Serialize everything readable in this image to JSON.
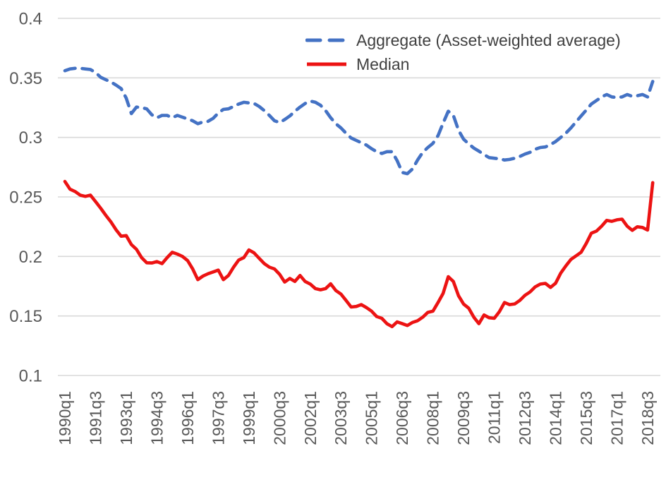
{
  "colors": {
    "aggregate_blue": "#4472c4",
    "median_red": "#ec1313",
    "gridline": "#d9d9d9",
    "axis_text": "#595959",
    "legend_text": "#404040",
    "background": "#ffffff"
  },
  "chart_data": {
    "type": "line",
    "title": "",
    "xlabel": "",
    "ylabel": "",
    "grid": "horizontal",
    "legend_position": "top-center-inside",
    "y_axis": {
      "ylim": [
        0.1,
        0.4
      ],
      "ticks": [
        {
          "label": "0.4",
          "value": 0.4
        },
        {
          "label": "0.35",
          "value": 0.35
        },
        {
          "label": "0.3",
          "value": 0.3
        },
        {
          "label": "0.25",
          "value": 0.25
        },
        {
          "label": "0.2",
          "value": 0.2
        },
        {
          "label": "0.15",
          "value": 0.15
        },
        {
          "label": "0.1",
          "value": 0.1
        }
      ]
    },
    "x_axis": {
      "start_quarter": "1990q1",
      "end_quarter": "2018q4",
      "label_every_quarters": 6,
      "labels": [
        "1990q1",
        "1991q3",
        "1993q1",
        "1994q3",
        "1996q1",
        "1997q3",
        "1999q1",
        "2000q3",
        "2002q1",
        "2003q3",
        "2005q1",
        "2006q3",
        "2008q1",
        "2009q3",
        "2011q1",
        "2012q3",
        "2014q1",
        "2015q3",
        "2017q1",
        "2018q3"
      ]
    },
    "series": [
      {
        "name": "Aggregate (Asset-weighted average)",
        "data_name": "aggregate-series-line",
        "color": "#4472c4",
        "style": "dashed",
        "values": [
          0.356,
          0.3575,
          0.358,
          0.358,
          0.3575,
          0.357,
          0.3545,
          0.3505,
          0.3485,
          0.3465,
          0.344,
          0.341,
          0.333,
          0.32,
          0.3255,
          0.325,
          0.324,
          0.319,
          0.3165,
          0.3185,
          0.3185,
          0.3165,
          0.3185,
          0.317,
          0.3155,
          0.314,
          0.3115,
          0.313,
          0.3135,
          0.316,
          0.3205,
          0.3235,
          0.324,
          0.326,
          0.328,
          0.3295,
          0.329,
          0.3285,
          0.326,
          0.3225,
          0.3185,
          0.314,
          0.3125,
          0.315,
          0.318,
          0.322,
          0.3255,
          0.3285,
          0.3305,
          0.3295,
          0.327,
          0.3225,
          0.3165,
          0.3115,
          0.308,
          0.3035,
          0.2995,
          0.2975,
          0.2955,
          0.2935,
          0.2905,
          0.288,
          0.2865,
          0.288,
          0.288,
          0.2805,
          0.2705,
          0.2695,
          0.2735,
          0.281,
          0.2875,
          0.2915,
          0.295,
          0.3015,
          0.312,
          0.322,
          0.3185,
          0.306,
          0.2985,
          0.2945,
          0.291,
          0.2885,
          0.2855,
          0.283,
          0.2825,
          0.282,
          0.281,
          0.2815,
          0.2825,
          0.284,
          0.286,
          0.2875,
          0.29,
          0.2915,
          0.292,
          0.294,
          0.2965,
          0.3,
          0.3035,
          0.308,
          0.313,
          0.318,
          0.323,
          0.328,
          0.331,
          0.334,
          0.336,
          0.334,
          0.3335,
          0.334,
          0.336,
          0.3345,
          0.335,
          0.336,
          0.334,
          0.347
        ]
      },
      {
        "name": "Median",
        "data_name": "median-series-line",
        "color": "#ec1313",
        "style": "solid",
        "values": [
          0.263,
          0.2565,
          0.2545,
          0.2515,
          0.2505,
          0.2515,
          0.246,
          0.2405,
          0.2345,
          0.229,
          0.2225,
          0.217,
          0.2175,
          0.21,
          0.206,
          0.199,
          0.1947,
          0.1945,
          0.1957,
          0.194,
          0.199,
          0.2035,
          0.202,
          0.2,
          0.1965,
          0.1895,
          0.1805,
          0.1835,
          0.1855,
          0.187,
          0.1885,
          0.1805,
          0.184,
          0.191,
          0.197,
          0.199,
          0.2055,
          0.203,
          0.1985,
          0.194,
          0.191,
          0.1895,
          0.185,
          0.1785,
          0.1815,
          0.179,
          0.184,
          0.179,
          0.1768,
          0.173,
          0.172,
          0.173,
          0.177,
          0.1714,
          0.1684,
          0.163,
          0.1575,
          0.158,
          0.1595,
          0.157,
          0.154,
          0.1495,
          0.148,
          0.1435,
          0.141,
          0.145,
          0.1435,
          0.142,
          0.1446,
          0.146,
          0.149,
          0.153,
          0.154,
          0.1613,
          0.169,
          0.183,
          0.179,
          0.167,
          0.16,
          0.1565,
          0.149,
          0.1435,
          0.1508,
          0.1485,
          0.148,
          0.1536,
          0.1613,
          0.1595,
          0.1601,
          0.1631,
          0.1673,
          0.1702,
          0.1744,
          0.1768,
          0.1774,
          0.174,
          0.1775,
          0.186,
          0.192,
          0.1975,
          0.2005,
          0.2035,
          0.211,
          0.2195,
          0.2213,
          0.2254,
          0.2303,
          0.2295,
          0.2308,
          0.2313,
          0.2254,
          0.2219,
          0.2249,
          0.2243,
          0.2222,
          0.262
        ]
      }
    ]
  }
}
